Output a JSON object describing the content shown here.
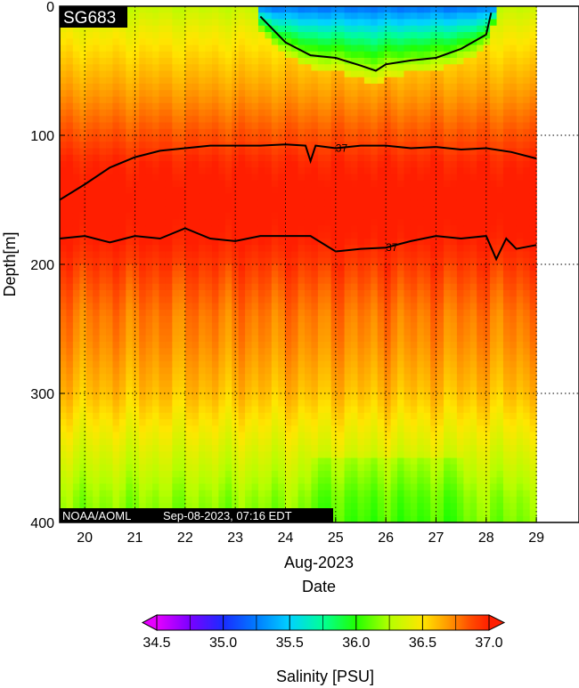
{
  "chart_data": {
    "type": "heatmap",
    "badge": "SG683",
    "footer_left": "NOAA/AOML",
    "footer_right": "Sep-08-2023, 07:16 EDT",
    "xlabel_month": "Aug-2023",
    "xlabel": "Date",
    "ylabel": "Depth[m]",
    "x_ticks": [
      "20",
      "21",
      "22",
      "23",
      "24",
      "25",
      "26",
      "27",
      "28",
      "29"
    ],
    "xlim": [
      19.5,
      29.85
    ],
    "y_ticks": [
      0,
      100,
      200,
      300,
      400
    ],
    "ylim": [
      0,
      400
    ],
    "y_reversed": true,
    "grid": true,
    "data_end": 29.0,
    "colorbar": {
      "title": "Salinity [PSU]",
      "ticks": [
        "34.5",
        "35.0",
        "35.5",
        "36.0",
        "36.5",
        "37.0"
      ],
      "range": [
        34.5,
        37.0
      ],
      "stops": [
        {
          "v": 34.5,
          "c": "#e600ff"
        },
        {
          "v": 34.75,
          "c": "#7a00ff"
        },
        {
          "v": 35.0,
          "c": "#1a2cff"
        },
        {
          "v": 35.25,
          "c": "#007cff"
        },
        {
          "v": 35.5,
          "c": "#00d2ff"
        },
        {
          "v": 35.75,
          "c": "#00ff96"
        },
        {
          "v": 36.0,
          "c": "#21ff00"
        },
        {
          "v": 36.25,
          "c": "#b4ff00"
        },
        {
          "v": 36.5,
          "c": "#ffe600"
        },
        {
          "v": 36.7,
          "c": "#ff9600"
        },
        {
          "v": 36.85,
          "c": "#ff5000"
        },
        {
          "v": 37.0,
          "c": "#ff1e00"
        }
      ]
    },
    "salinity_profile": {
      "depth": [
        0,
        20,
        40,
        60,
        80,
        100,
        120,
        150,
        180,
        200,
        220,
        240,
        260,
        300,
        340,
        380,
        400
      ],
      "salinity": [
        36.3,
        36.45,
        36.55,
        36.65,
        36.75,
        36.85,
        36.97,
        37.05,
        37.0,
        36.92,
        36.83,
        36.76,
        36.72,
        36.6,
        36.4,
        36.2,
        36.15
      ]
    },
    "contours": [
      {
        "label": "37",
        "x": [
          19.5,
          20.0,
          20.5,
          21.0,
          21.5,
          22.0,
          22.5,
          23.0,
          23.5,
          24.0,
          24.4,
          24.5,
          24.6,
          25.0,
          25.5,
          26.0,
          26.5,
          27.0,
          27.5,
          28.0,
          28.5,
          29.0
        ],
        "depth": [
          150,
          138,
          125,
          117,
          112,
          110,
          108,
          108,
          108,
          107,
          108,
          120,
          108,
          110,
          108,
          108,
          110,
          109,
          111,
          110,
          113,
          118
        ]
      },
      {
        "label": "37",
        "x": [
          19.5,
          20.0,
          20.5,
          21.0,
          21.5,
          22.0,
          22.5,
          23.0,
          23.5,
          24.0,
          24.5,
          25.0,
          25.5,
          26.0,
          26.5,
          27.0,
          27.5,
          28.0,
          28.2,
          28.4,
          28.6,
          29.0
        ],
        "depth": [
          180,
          178,
          183,
          178,
          180,
          172,
          180,
          182,
          178,
          178,
          178,
          190,
          188,
          187,
          182,
          178,
          180,
          178,
          196,
          180,
          188,
          185
        ]
      },
      {
        "label": "",
        "x": [
          23.5,
          24.0,
          24.5,
          25.0,
          25.5,
          25.8,
          26.0,
          26.5,
          27.0,
          27.5,
          28.0,
          28.1
        ],
        "depth": [
          8,
          28,
          38,
          40,
          46,
          50,
          45,
          42,
          40,
          33,
          22,
          5
        ]
      }
    ]
  }
}
